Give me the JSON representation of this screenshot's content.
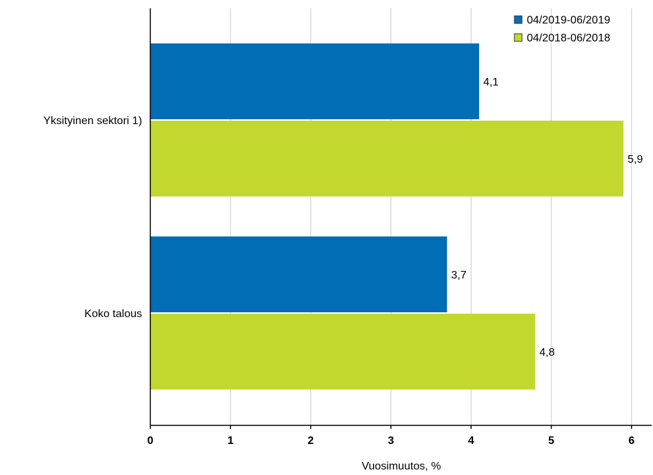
{
  "chart_data": {
    "type": "bar",
    "orientation": "horizontal",
    "categories": [
      "Yksityinen sektori 1)",
      "Koko talous"
    ],
    "series": [
      {
        "name": "04/2019-06/2019",
        "values": [
          4.1,
          3.7
        ],
        "labels": [
          "4,1",
          "3,7"
        ],
        "color": "#006db5"
      },
      {
        "name": "04/2018-06/2018",
        "values": [
          5.9,
          4.8
        ],
        "labels": [
          "5,9",
          "4,8"
        ],
        "color": "#c2d82e"
      }
    ],
    "title": "",
    "xlabel": "Vuosimuutos, %",
    "ylabel": "",
    "xlim": [
      0,
      6.3
    ],
    "xticks": [
      0,
      1,
      2,
      3,
      4,
      5,
      6
    ],
    "xtick_labels": [
      "0",
      "1",
      "2",
      "3",
      "4",
      "5",
      "6"
    ],
    "grid": true,
    "legend_position": "top-right"
  }
}
